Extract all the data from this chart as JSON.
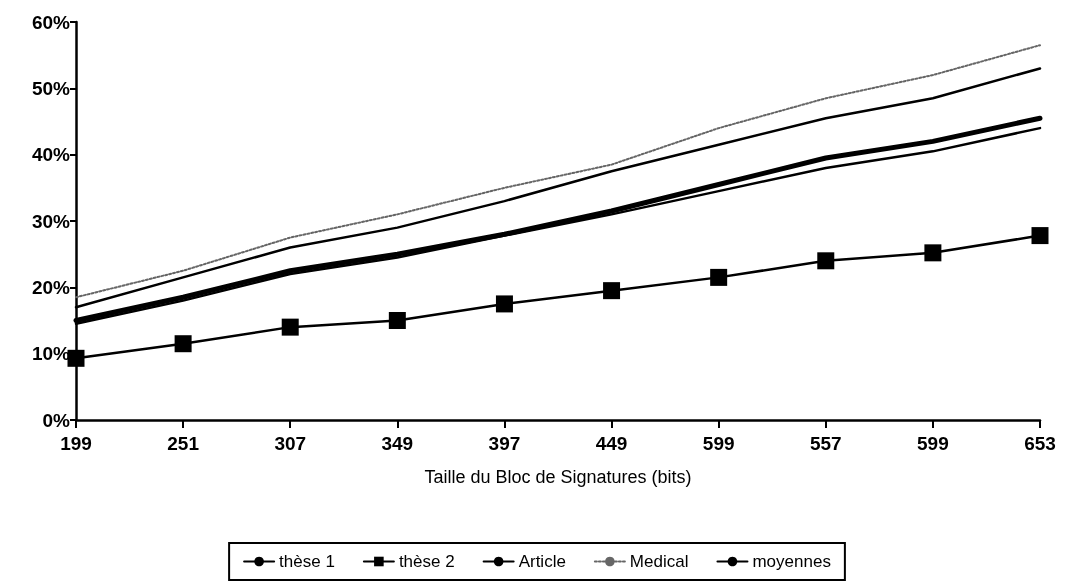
{
  "chart_data": {
    "type": "line",
    "xlabel": "Taille du Bloc de Signatures (bits)",
    "categories": [
      "199",
      "251",
      "307",
      "349",
      "397",
      "449",
      "599",
      "557",
      "599",
      "653"
    ],
    "ylim": [
      0,
      60
    ],
    "yticks": [
      {
        "value": 0,
        "label": "0%"
      },
      {
        "value": 10,
        "label": "10%"
      },
      {
        "value": 20,
        "label": "20%"
      },
      {
        "value": 30,
        "label": "30%"
      },
      {
        "value": 40,
        "label": "40%"
      },
      {
        "value": 50,
        "label": "50%"
      },
      {
        "value": 60,
        "label": "60%"
      }
    ],
    "grid": false,
    "legend": "bottom",
    "marker": "none",
    "line_style": "solid",
    "series": [
      {
        "name": "thèse 1",
        "color": "#000000",
        "values": [
          17,
          21.5,
          26,
          29,
          33,
          37.5,
          41.5,
          45.5,
          48.5,
          53
        ]
      },
      {
        "name": "thèse 2",
        "color": "#000000",
        "marker": "square",
        "values": [
          9.3,
          11.5,
          14,
          15,
          17.5,
          19.5,
          21.5,
          24,
          25.2,
          27.8
        ]
      },
      {
        "name": "Article",
        "color": "#000000",
        "values": [
          14.5,
          18,
          22,
          24.5,
          27.8,
          31,
          34.5,
          38,
          40.5,
          44
        ]
      },
      {
        "name": "Medical",
        "color": "#666666",
        "line_style": "dotted",
        "values": [
          18.5,
          22.5,
          27.5,
          31,
          35,
          38.5,
          44,
          48.5,
          52,
          56.5
        ]
      },
      {
        "name": "moyennes",
        "color": "#000000",
        "values": [
          15,
          18.5,
          22.5,
          25,
          28,
          31.5,
          35.5,
          39.5,
          42,
          45.5
        ]
      }
    ]
  }
}
